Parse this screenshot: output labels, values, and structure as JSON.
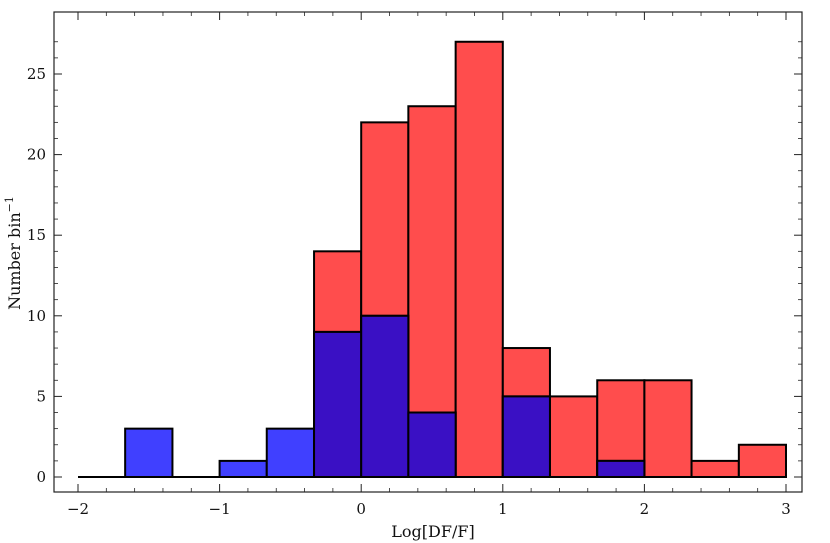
{
  "chart_data": {
    "type": "bar",
    "xlabel": "Log[DF/F]",
    "ylabel_text": "Number bin",
    "ylabel_superscript": "−1",
    "xlim": [
      -2,
      3
    ],
    "ylim": [
      0,
      27.5
    ],
    "xticks": [
      -2,
      -1,
      0,
      1,
      2,
      3
    ],
    "xtick_labels": [
      "−2",
      "−1",
      "0",
      "1",
      "2",
      "3"
    ],
    "yticks": [
      0,
      5,
      10,
      15,
      20,
      25
    ],
    "ytick_labels": [
      "0",
      "5",
      "10",
      "15",
      "20",
      "25"
    ],
    "bin_width": 0.3333,
    "series": [
      {
        "color": "#ff4d4d",
        "bins": [
          {
            "x0": -2.0,
            "x1": -1.667,
            "count": 0
          },
          {
            "x0": -0.333,
            "x1": 0.0,
            "count": 14
          },
          {
            "x0": 0.0,
            "x1": 0.333,
            "count": 22
          },
          {
            "x0": 0.333,
            "x1": 0.667,
            "count": 23
          },
          {
            "x0": 0.667,
            "x1": 1.0,
            "count": 27
          },
          {
            "x0": 1.0,
            "x1": 1.333,
            "count": 8
          },
          {
            "x0": 1.333,
            "x1": 1.667,
            "count": 5
          },
          {
            "x0": 1.667,
            "x1": 2.0,
            "count": 6
          },
          {
            "x0": 2.0,
            "x1": 2.333,
            "count": 6
          },
          {
            "x0": 2.333,
            "x1": 2.667,
            "count": 1
          },
          {
            "x0": 2.667,
            "x1": 3.0,
            "count": 2
          }
        ]
      },
      {
        "color": "#4040ff",
        "bins": [
          {
            "x0": -2.0,
            "x1": -1.667,
            "count": 0
          },
          {
            "x0": -1.667,
            "x1": -1.333,
            "count": 3
          },
          {
            "x0": -1.333,
            "x1": -1.0,
            "count": 0
          },
          {
            "x0": -1.0,
            "x1": -0.667,
            "count": 1
          },
          {
            "x0": -0.667,
            "x1": -0.333,
            "count": 3
          },
          {
            "x0": -0.333,
            "x1": 0.0,
            "count": 9
          },
          {
            "x0": 0.0,
            "x1": 0.333,
            "count": 10
          },
          {
            "x0": 0.333,
            "x1": 0.667,
            "count": 4
          },
          {
            "x0": 1.0,
            "x1": 1.333,
            "count": 5
          },
          {
            "x0": 1.667,
            "x1": 2.0,
            "count": 1
          }
        ]
      }
    ],
    "overlap_color": "#3a10c4",
    "grid": false,
    "legend": "none"
  }
}
